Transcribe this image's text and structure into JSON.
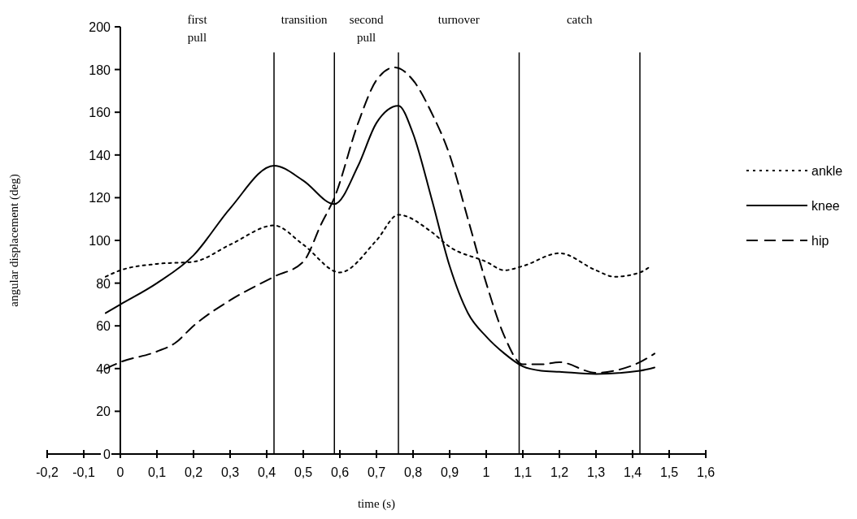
{
  "chart_data": {
    "type": "line",
    "xlabel": "time (s)",
    "ylabel": "angular displacement (deg)",
    "xlim": [
      -0.2,
      1.6
    ],
    "ylim": [
      0,
      200
    ],
    "xticks": [
      {
        "value": -0.2,
        "label": "-0,2"
      },
      {
        "value": -0.1,
        "label": "-0,1"
      },
      0,
      {
        "value": 0.1,
        "label": "0,1"
      },
      {
        "value": 0.2,
        "label": "0,2"
      },
      {
        "value": 0.3,
        "label": "0,3"
      },
      {
        "value": 0.4,
        "label": "0,4"
      },
      {
        "value": 0.5,
        "label": "0,5"
      },
      {
        "value": 0.6,
        "label": "0,6"
      },
      {
        "value": 0.7,
        "label": "0,7"
      },
      {
        "value": 0.8,
        "label": "0,8"
      },
      {
        "value": 0.9,
        "label": "0,9"
      },
      1,
      {
        "value": 1.1,
        "label": "1,1"
      },
      {
        "value": 1.2,
        "label": "1,2"
      },
      {
        "value": 1.3,
        "label": "1,3"
      },
      {
        "value": 1.4,
        "label": "1,4"
      },
      {
        "value": 1.5,
        "label": "1,5"
      },
      {
        "value": 1.6,
        "label": "1,6"
      }
    ],
    "yticks": [
      0,
      20,
      40,
      60,
      80,
      100,
      120,
      140,
      160,
      180,
      200
    ],
    "grid": false,
    "legend": "right",
    "series": [
      {
        "name": "ankle",
        "color": "#000000",
        "line_style": "dotted",
        "x": [
          -0.04,
          0,
          0.1,
          0.2,
          0.3,
          0.42,
          0.5,
          0.6,
          0.7,
          0.76,
          0.85,
          0.9,
          1.0,
          1.05,
          1.1,
          1.2,
          1.3,
          1.35,
          1.42,
          1.45
        ],
        "values": [
          83,
          86,
          89,
          90,
          98,
          107,
          98,
          85,
          100,
          112,
          104,
          97,
          90,
          86,
          88,
          94,
          86,
          83,
          85,
          88
        ]
      },
      {
        "name": "knee",
        "color": "#000000",
        "line_style": "solid",
        "x": [
          -0.04,
          0,
          0.1,
          0.2,
          0.3,
          0.42,
          0.5,
          0.585,
          0.65,
          0.7,
          0.76,
          0.8,
          0.85,
          0.9,
          0.95,
          1.0,
          1.05,
          1.1,
          1.15,
          1.2,
          1.3,
          1.42,
          1.46
        ],
        "values": [
          66,
          70,
          80,
          93,
          115,
          135,
          128,
          117,
          135,
          155,
          163,
          150,
          120,
          88,
          66,
          55,
          47,
          41,
          39,
          38.5,
          37.5,
          39,
          40.5
        ]
      },
      {
        "name": "hip",
        "color": "#000000",
        "line_style": "dashed",
        "x": [
          -0.04,
          0,
          0.1,
          0.15,
          0.2,
          0.3,
          0.42,
          0.5,
          0.55,
          0.585,
          0.65,
          0.7,
          0.75,
          0.8,
          0.85,
          0.9,
          0.95,
          1.0,
          1.05,
          1.1,
          1.15,
          1.2,
          1.3,
          1.35,
          1.42,
          1.46
        ],
        "values": [
          40,
          43,
          48,
          52,
          60,
          72,
          83,
          90,
          108,
          120,
          155,
          175,
          181,
          175,
          160,
          140,
          110,
          80,
          55,
          42,
          42,
          43,
          38,
          39,
          43,
          47
        ]
      }
    ],
    "ref_lines": [
      {
        "axis": "x",
        "value": 0.42,
        "color": "#000000"
      },
      {
        "axis": "x",
        "value": 0.585,
        "color": "#000000"
      },
      {
        "axis": "x",
        "value": 0.76,
        "color": "#000000"
      },
      {
        "axis": "x",
        "value": 1.09,
        "color": "#000000"
      },
      {
        "axis": "x",
        "value": 1.42,
        "color": "#000000"
      }
    ],
    "annotations": [
      "first\npull",
      "transition",
      "second\npull",
      "turnover",
      "catch"
    ]
  }
}
